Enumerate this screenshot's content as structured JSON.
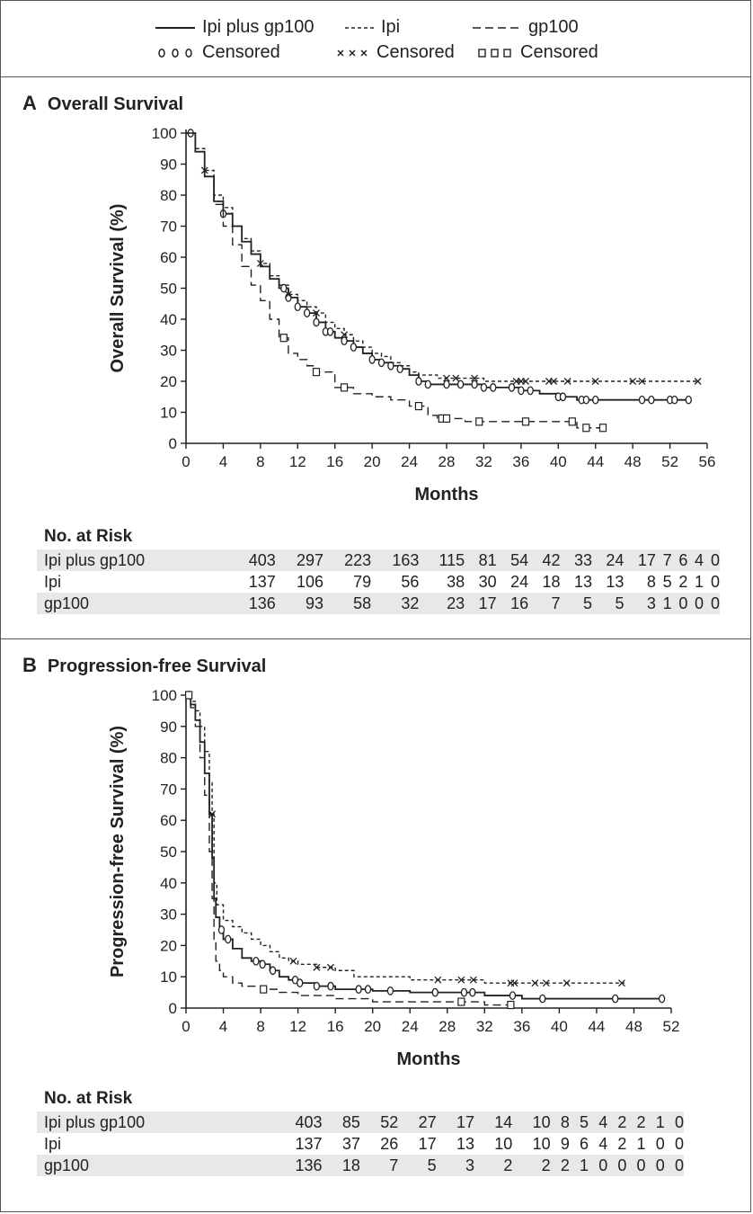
{
  "legend": {
    "series": [
      {
        "name": "Ipi plus gp100",
        "dash": "solid",
        "censored_label": "Censored",
        "marker": "circle",
        "marker_glyphs": "○○○"
      },
      {
        "name": "Ipi",
        "dash": "dotted",
        "censored_label": "Censored",
        "marker": "x",
        "marker_glyphs": "×××"
      },
      {
        "name": "gp100",
        "dash": "dashed",
        "censored_label": "Censored",
        "marker": "square",
        "marker_glyphs": "□□□"
      }
    ]
  },
  "risk_title": "No. at Risk",
  "chart_data": [
    {
      "type": "line",
      "panel_letter": "A",
      "title": "Overall Survival",
      "xlabel": "Months",
      "ylabel": "Overall Survival (%)",
      "xlim": [
        0,
        56
      ],
      "ylim": [
        0,
        100
      ],
      "xticks": [
        0,
        4,
        8,
        12,
        16,
        20,
        24,
        28,
        32,
        36,
        40,
        44,
        48,
        52,
        56
      ],
      "yticks": [
        0,
        10,
        20,
        30,
        40,
        50,
        60,
        70,
        80,
        90,
        100
      ],
      "series": [
        {
          "name": "Ipi plus gp100",
          "dash": "solid",
          "x": [
            0,
            1,
            2,
            3,
            4,
            5,
            6,
            7,
            8,
            9,
            10,
            11,
            12,
            13,
            14,
            15,
            16,
            17,
            18,
            19,
            20,
            21,
            22,
            23,
            24,
            25,
            26,
            28,
            30,
            32,
            34,
            36,
            38,
            40,
            42,
            44,
            48,
            52,
            54
          ],
          "y": [
            100,
            94,
            86,
            78,
            74,
            70,
            65,
            61,
            57,
            53,
            50,
            47,
            44,
            42,
            39,
            36,
            34,
            33,
            31,
            29,
            27,
            26,
            25,
            24,
            22,
            20,
            19,
            19,
            19,
            18,
            18,
            17,
            16,
            15,
            14,
            14,
            14,
            14,
            14
          ],
          "censored_x": [
            0.5,
            4,
            10.5,
            11,
            12,
            13,
            14,
            15,
            15.5,
            17,
            18,
            20,
            21,
            22,
            23,
            25,
            26,
            28,
            29.5,
            31,
            32,
            33,
            35,
            36,
            37,
            40,
            40.5,
            42.5,
            43,
            44,
            49,
            50,
            52,
            52.5,
            54
          ]
        },
        {
          "name": "Ipi",
          "dash": "dotted",
          "x": [
            0,
            1,
            2,
            3,
            4,
            5,
            6,
            7,
            8,
            9,
            10,
            11,
            12,
            13,
            14,
            15,
            16,
            17,
            18,
            19,
            20,
            21,
            22,
            23,
            24,
            25,
            26,
            27,
            28,
            30,
            32,
            36,
            40,
            44,
            48,
            52,
            55
          ],
          "y": [
            100,
            95,
            88,
            80,
            76,
            70,
            66,
            62,
            58,
            54,
            51,
            48,
            46,
            44,
            42,
            39,
            37,
            35,
            33,
            31,
            29,
            28,
            26,
            25,
            23,
            22,
            22,
            21,
            21,
            21,
            20,
            20,
            20,
            20,
            20,
            20,
            20
          ],
          "censored_x": [
            2,
            8,
            11,
            14,
            17,
            28,
            29,
            31,
            35.5,
            36,
            36.5,
            39,
            39.5,
            41,
            44,
            48,
            49,
            55
          ]
        },
        {
          "name": "gp100",
          "dash": "dashed",
          "x": [
            0,
            1,
            2,
            3,
            4,
            5,
            6,
            7,
            8,
            9,
            10,
            11,
            12,
            13,
            14,
            16,
            18,
            20,
            22,
            24,
            26,
            27,
            28,
            30,
            32,
            36,
            40,
            42,
            44,
            45
          ],
          "y": [
            100,
            94,
            86,
            77,
            70,
            64,
            57,
            51,
            46,
            40,
            34,
            29,
            27,
            25,
            23,
            18,
            16,
            15,
            14,
            12,
            9,
            8,
            8,
            7,
            7,
            7,
            7,
            5,
            5,
            5
          ],
          "censored_x": [
            10.5,
            14,
            17,
            25,
            27.5,
            28,
            31.5,
            36.5,
            41.5,
            43,
            44.8
          ]
        }
      ],
      "risk_table": {
        "rows": [
          {
            "label": "Ipi plus gp100",
            "values": [
              403,
              297,
              223,
              163,
              115,
              81,
              54,
              42,
              33,
              24,
              17,
              7,
              6,
              4,
              0
            ]
          },
          {
            "label": "Ipi",
            "values": [
              137,
              106,
              79,
              56,
              38,
              30,
              24,
              18,
              13,
              13,
              8,
              5,
              2,
              1,
              0
            ]
          },
          {
            "label": "gp100",
            "values": [
              136,
              93,
              58,
              32,
              23,
              17,
              16,
              7,
              5,
              5,
              3,
              1,
              0,
              0,
              0
            ]
          }
        ]
      }
    },
    {
      "type": "line",
      "panel_letter": "B",
      "title": "Progression-free Survival",
      "xlabel": "Months",
      "ylabel": "Progression-free Survival (%)",
      "xlim": [
        0,
        52
      ],
      "ylim": [
        0,
        100
      ],
      "xticks": [
        0,
        4,
        8,
        12,
        16,
        20,
        24,
        28,
        32,
        36,
        40,
        44,
        48,
        52
      ],
      "yticks": [
        0,
        10,
        20,
        30,
        40,
        50,
        60,
        70,
        80,
        90,
        100
      ],
      "series": [
        {
          "name": "Ipi plus gp100",
          "dash": "solid",
          "x": [
            0,
            0.5,
            1,
            1.5,
            2,
            2.5,
            2.8,
            3,
            3.2,
            3.6,
            4,
            5,
            6,
            7,
            8,
            9,
            10,
            11,
            12,
            14,
            16,
            18,
            20,
            24,
            28,
            32,
            36,
            40,
            44,
            48,
            51
          ],
          "y": [
            100,
            97,
            92,
            85,
            75,
            62,
            48,
            35,
            29,
            25,
            22,
            19,
            16,
            15,
            14,
            12,
            10,
            9,
            8,
            7,
            6,
            6,
            5.5,
            5,
            5,
            4,
            3,
            3,
            3,
            3,
            3
          ],
          "censored_x": [
            0.3,
            3.8,
            4.5,
            7.5,
            8.2,
            9.3,
            11.7,
            12.2,
            14,
            15.5,
            18.5,
            19.5,
            21.9,
            26.7,
            29.8,
            30.7,
            35,
            38.2,
            46,
            51
          ]
        },
        {
          "name": "Ipi",
          "dash": "dotted",
          "x": [
            0,
            0.5,
            1,
            1.5,
            2,
            2.5,
            2.8,
            3,
            3.3,
            4,
            5,
            6,
            7,
            8,
            9,
            10,
            11,
            12,
            14,
            16,
            18,
            20,
            24,
            28,
            32,
            36,
            40,
            44,
            47
          ],
          "y": [
            100,
            98,
            95,
            90,
            82,
            72,
            62,
            40,
            33,
            28,
            26,
            24,
            22,
            20,
            18,
            16,
            15,
            14,
            13,
            12,
            10,
            10,
            9,
            9,
            8,
            8,
            8,
            8,
            8
          ],
          "censored_x": [
            0.3,
            2.8,
            11.5,
            14,
            15.5,
            27,
            29.5,
            30.8,
            34.8,
            35.2,
            37.4,
            38.6,
            40.8,
            46.7
          ]
        },
        {
          "name": "gp100",
          "dash": "dashed",
          "x": [
            0,
            0.5,
            1,
            1.5,
            2,
            2.5,
            2.8,
            3,
            3.2,
            3.6,
            4,
            5,
            6,
            8,
            10,
            12,
            16,
            20,
            24,
            28,
            32,
            35
          ],
          "y": [
            100,
            96,
            90,
            80,
            68,
            50,
            35,
            22,
            15,
            12,
            10,
            8,
            7,
            6,
            5,
            4,
            3,
            2,
            2,
            2,
            1,
            1
          ],
          "censored_x": [
            0.3,
            8.3,
            29.5,
            34.8
          ]
        }
      ],
      "risk_table": {
        "rows": [
          {
            "label": "Ipi plus gp100",
            "values": [
              403,
              85,
              52,
              27,
              17,
              14,
              10,
              8,
              5,
              4,
              2,
              2,
              1,
              0
            ]
          },
          {
            "label": "Ipi",
            "values": [
              137,
              37,
              26,
              17,
              13,
              10,
              10,
              9,
              6,
              4,
              2,
              1,
              0,
              0
            ]
          },
          {
            "label": "gp100",
            "values": [
              136,
              18,
              7,
              5,
              3,
              2,
              2,
              2,
              1,
              0,
              0,
              0,
              0,
              0
            ]
          }
        ]
      }
    }
  ]
}
